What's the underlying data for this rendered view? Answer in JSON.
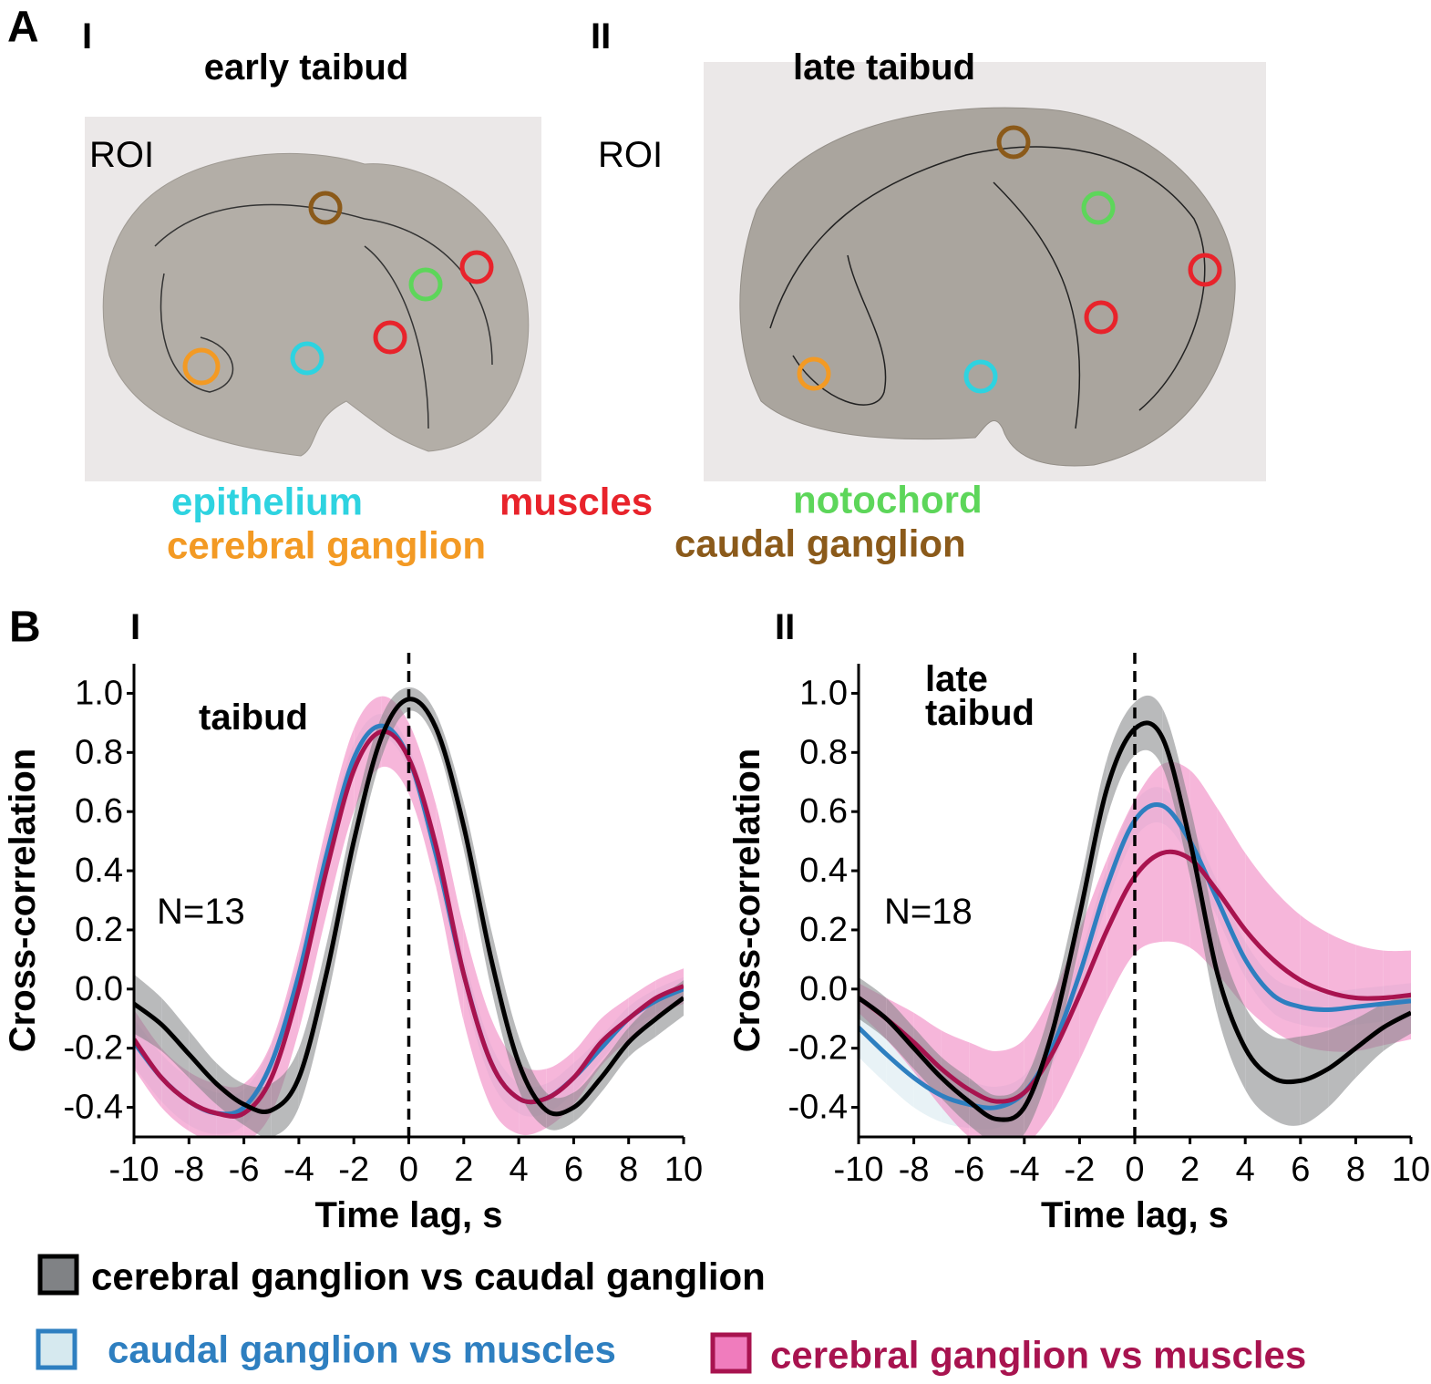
{
  "panel_a": {
    "label": "A",
    "images": [
      {
        "panel_label": "I",
        "title": "early taibud",
        "roi": "ROI"
      },
      {
        "panel_label": "II",
        "title": "late taibud",
        "roi": "ROI"
      }
    ],
    "legend": [
      "epithelium",
      "muscles",
      "notochord",
      "cerebral ganglion",
      "caudal ganglion"
    ]
  },
  "panel_b": {
    "label": "B"
  },
  "chart_data": [
    {
      "type": "line",
      "panel_label": "I",
      "annotation": [
        "taibud"
      ],
      "n_label": "N=13",
      "x_label": "Time lag, s",
      "y_label": "Cross-correlation",
      "xlim": [
        -10,
        10
      ],
      "ylim": [
        -0.5,
        1.1
      ],
      "vline": 0,
      "xticks": [
        -10,
        -8,
        -6,
        -4,
        -2,
        0,
        2,
        4,
        6,
        8,
        10
      ],
      "yticks": [
        -0.4,
        -0.2,
        {
          "value": 0,
          "label": "0.0"
        },
        0.2,
        0.4,
        0.6,
        0.8,
        {
          "value": 1,
          "label": "1.0"
        }
      ],
      "x": [
        -10,
        -9,
        -8,
        -7,
        -6,
        -5,
        -4,
        -3,
        -2,
        -1,
        0,
        1,
        2,
        3,
        4,
        5,
        6,
        7,
        8,
        9,
        10
      ],
      "series": [
        {
          "name": "caudal ganglion vs muscles",
          "color": "#2e7fc0",
          "band_color": "#d6e9ef",
          "values": [
            -0.18,
            -0.3,
            -0.38,
            -0.42,
            -0.4,
            -0.25,
            0.05,
            0.45,
            0.78,
            0.89,
            0.78,
            0.45,
            0.05,
            -0.25,
            -0.37,
            -0.37,
            -0.3,
            -0.2,
            -0.1,
            -0.04,
            0.0
          ],
          "errors": [
            0.08,
            0.08,
            0.08,
            0.07,
            0.06,
            0.06,
            0.06,
            0.06,
            0.05,
            0.04,
            0.04,
            0.05,
            0.06,
            0.06,
            0.05,
            0.05,
            0.05,
            0.04,
            0.04,
            0.04,
            0.04
          ]
        },
        {
          "name": "cerebral ganglion vs muscles",
          "color": "#a8134f",
          "band_color": "#f07cbd",
          "values": [
            -0.17,
            -0.3,
            -0.38,
            -0.42,
            -0.42,
            -0.3,
            0.0,
            0.4,
            0.74,
            0.87,
            0.78,
            0.48,
            0.05,
            -0.25,
            -0.37,
            -0.37,
            -0.3,
            -0.18,
            -0.1,
            -0.03,
            0.01
          ],
          "errors": [
            0.1,
            0.1,
            0.1,
            0.1,
            0.1,
            0.12,
            0.14,
            0.15,
            0.14,
            0.12,
            0.12,
            0.14,
            0.16,
            0.15,
            0.12,
            0.1,
            0.09,
            0.08,
            0.07,
            0.06,
            0.06
          ]
        },
        {
          "name": "cerebral ganglion vs caudal ganglion",
          "color": "#000000",
          "band_color": "#808285",
          "values": [
            -0.05,
            -0.12,
            -0.22,
            -0.32,
            -0.39,
            -0.41,
            -0.3,
            0.05,
            0.5,
            0.85,
            0.98,
            0.88,
            0.55,
            0.1,
            -0.25,
            -0.41,
            -0.4,
            -0.3,
            -0.18,
            -0.1,
            -0.03
          ],
          "errors": [
            0.1,
            0.09,
            0.08,
            0.07,
            0.07,
            0.09,
            0.1,
            0.1,
            0.09,
            0.07,
            0.04,
            0.05,
            0.08,
            0.1,
            0.09,
            0.06,
            0.05,
            0.05,
            0.05,
            0.06,
            0.06
          ]
        }
      ]
    },
    {
      "type": "line",
      "panel_label": "II",
      "annotation": [
        "late",
        "taibud"
      ],
      "n_label": "N=18",
      "x_label": "Time lag, s",
      "y_label": "Cross-correlation",
      "xlim": [
        -10,
        10
      ],
      "ylim": [
        -0.5,
        1.1
      ],
      "vline": 0,
      "xticks": [
        -10,
        -8,
        -6,
        -4,
        -2,
        0,
        2,
        4,
        6,
        8,
        10
      ],
      "yticks": [
        -0.4,
        -0.2,
        {
          "value": 0,
          "label": "0.0"
        },
        0.2,
        0.4,
        0.6,
        0.8,
        {
          "value": 1,
          "label": "1.0"
        }
      ],
      "x": [
        -10,
        -9,
        -8,
        -7,
        -6,
        -5,
        -4,
        -3,
        -2,
        -1,
        0,
        1,
        2,
        3,
        4,
        5,
        6,
        7,
        8,
        9,
        10
      ],
      "series": [
        {
          "name": "caudal ganglion vs muscles",
          "color": "#2e7fc0",
          "band_color": "#d6e9ef",
          "values": [
            -0.13,
            -0.22,
            -0.3,
            -0.36,
            -0.39,
            -0.4,
            -0.35,
            -0.2,
            0.05,
            0.35,
            0.57,
            0.62,
            0.5,
            0.3,
            0.1,
            -0.02,
            -0.06,
            -0.07,
            -0.06,
            -0.05,
            -0.04
          ],
          "errors": [
            0.1,
            0.1,
            0.1,
            0.09,
            0.08,
            0.07,
            0.06,
            0.06,
            0.06,
            0.06,
            0.06,
            0.06,
            0.06,
            0.06,
            0.06,
            0.06,
            0.06,
            0.06,
            0.06,
            0.06,
            0.06
          ]
        },
        {
          "name": "cerebral ganglion vs muscles",
          "color": "#a8134f",
          "band_color": "#f07cbd",
          "values": [
            -0.03,
            -0.1,
            -0.18,
            -0.27,
            -0.34,
            -0.38,
            -0.35,
            -0.22,
            -0.02,
            0.2,
            0.38,
            0.46,
            0.44,
            0.33,
            0.2,
            0.1,
            0.03,
            -0.01,
            -0.03,
            -0.03,
            -0.02
          ],
          "errors": [
            0.05,
            0.07,
            0.1,
            0.13,
            0.16,
            0.17,
            0.18,
            0.2,
            0.22,
            0.24,
            0.26,
            0.3,
            0.3,
            0.28,
            0.26,
            0.24,
            0.22,
            0.2,
            0.18,
            0.16,
            0.15
          ]
        },
        {
          "name": "cerebral ganglion vs caudal ganglion",
          "color": "#000000",
          "band_color": "#808285",
          "values": [
            -0.03,
            -0.1,
            -0.2,
            -0.3,
            -0.38,
            -0.44,
            -0.4,
            -0.15,
            0.25,
            0.68,
            0.88,
            0.85,
            0.5,
            0.05,
            -0.2,
            -0.3,
            -0.31,
            -0.27,
            -0.2,
            -0.13,
            -0.08
          ],
          "errors": [
            0.07,
            0.07,
            0.07,
            0.07,
            0.08,
            0.08,
            0.09,
            0.1,
            0.1,
            0.1,
            0.09,
            0.1,
            0.12,
            0.14,
            0.14,
            0.14,
            0.15,
            0.13,
            0.1,
            0.08,
            0.07
          ]
        }
      ]
    }
  ]
}
